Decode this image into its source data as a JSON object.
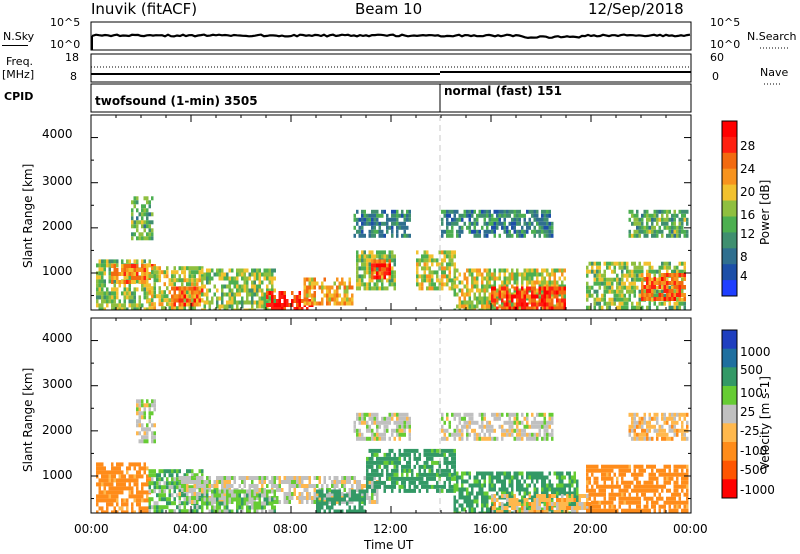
{
  "header": {
    "station": "Inuvik (fitACF)",
    "beam": "Beam 10",
    "date": "12/Sep/2018"
  },
  "top_panel": {
    "left_label": "N.Sky",
    "left_ticks": [
      "10^5",
      "10^0"
    ],
    "right_label": "N.Search",
    "right_ticks": [
      "10^5",
      "10^0"
    ]
  },
  "freq_panel": {
    "left_label_1": "Freq.",
    "left_label_2": "[MHz]",
    "left_ticks": [
      "18",
      "8"
    ],
    "right_label": "Nave",
    "right_ticks": [
      "60",
      "0"
    ]
  },
  "cpid_panel": {
    "label": "CPID",
    "mode_1": "twofsound (1-min) 3505",
    "mode_2": "normal (fast) 151"
  },
  "colors": {
    "power_scale": [
      "#1f3fff",
      "#1c4fa8",
      "#2f6f8f",
      "#3f8f6f",
      "#4caf50",
      "#8fbf3f",
      "#f2c12e",
      "#f7931e",
      "#f26a10",
      "#ff2010",
      "#ff0000"
    ],
    "velocity_scale": [
      "#ff0000",
      "#ff5500",
      "#ff8c1a",
      "#ffb84d",
      "#c0c0c0",
      "#66cc33",
      "#339966",
      "#1f6f9f",
      "#1f3fbf"
    ]
  },
  "chart_data": [
    {
      "type": "heatmap",
      "title": "",
      "xlabel": "",
      "ylabel": "Slant Range [km]",
      "xlim": [
        "00:00",
        "00:00"
      ],
      "ylim": [
        180,
        4500
      ],
      "yticks": [
        "4000",
        "3000",
        "2000",
        "1000"
      ],
      "colorbar": {
        "label": "Power [dB]",
        "ticks": [
          "28",
          "24",
          "20",
          "16",
          "12",
          "8",
          "4"
        ],
        "range": [
          0,
          30
        ]
      },
      "regions": [
        {
          "t0": 0.2,
          "t1": 2.4,
          "r0": 180,
          "r1": 1300,
          "value": 14
        },
        {
          "t0": 0.8,
          "t1": 2.6,
          "r0": 800,
          "r1": 1200,
          "value": 22
        },
        {
          "t0": 1.6,
          "t1": 2.5,
          "r0": 1800,
          "r1": 2700,
          "value": 12
        },
        {
          "t0": 2.3,
          "t1": 4.5,
          "r0": 180,
          "r1": 1150,
          "value": 16
        },
        {
          "t0": 3.2,
          "t1": 4.5,
          "r0": 300,
          "r1": 700,
          "value": 24
        },
        {
          "t0": 4.4,
          "t1": 7.4,
          "r0": 180,
          "r1": 1100,
          "value": 14
        },
        {
          "t0": 7.0,
          "t1": 9.0,
          "r0": 180,
          "r1": 600,
          "value": 28
        },
        {
          "t0": 8.5,
          "t1": 10.5,
          "r0": 300,
          "r1": 900,
          "value": 20
        },
        {
          "t0": 10.6,
          "t1": 12.2,
          "r0": 700,
          "r1": 1500,
          "value": 14
        },
        {
          "t0": 11.2,
          "t1": 11.9,
          "r0": 900,
          "r1": 1300,
          "value": 26
        },
        {
          "t0": 10.5,
          "t1": 12.8,
          "r0": 1800,
          "r1": 2400,
          "value": 8
        },
        {
          "t0": 13.0,
          "t1": 14.6,
          "r0": 700,
          "r1": 1500,
          "value": 16
        },
        {
          "t0": 14.5,
          "t1": 19.0,
          "r0": 180,
          "r1": 1100,
          "value": 16
        },
        {
          "t0": 16.0,
          "t1": 19.0,
          "r0": 180,
          "r1": 700,
          "value": 26
        },
        {
          "t0": 14.0,
          "t1": 18.5,
          "r0": 1800,
          "r1": 2400,
          "value": 8
        },
        {
          "t0": 19.8,
          "t1": 23.8,
          "r0": 180,
          "r1": 1250,
          "value": 14
        },
        {
          "t0": 22.0,
          "t1": 23.8,
          "r0": 400,
          "r1": 1000,
          "value": 24
        },
        {
          "t0": 21.5,
          "t1": 23.9,
          "r0": 1800,
          "r1": 2400,
          "value": 12
        }
      ]
    },
    {
      "type": "heatmap",
      "title": "",
      "xlabel": "Time UT",
      "ylabel": "Slant Range [km]",
      "xlim": [
        "00:00",
        "00:00"
      ],
      "ylim": [
        180,
        4500
      ],
      "yticks": [
        "4000",
        "3000",
        "2000",
        "1000"
      ],
      "xticks": [
        "00:00",
        "04:00",
        "08:00",
        "12:00",
        "16:00",
        "20:00",
        "00:00"
      ],
      "colorbar": {
        "label": "Velocity [m s-1]",
        "ticks": [
          "1000",
          "500",
          "100",
          "25",
          "-25",
          "-100",
          "-500",
          "-1000"
        ]
      },
      "regions": [
        {
          "t0": 0.2,
          "t1": 2.4,
          "r0": 180,
          "r1": 1300,
          "value": -200
        },
        {
          "t0": 1.8,
          "t1": 2.6,
          "r0": 1800,
          "r1": 2700,
          "value": 0
        },
        {
          "t0": 2.3,
          "t1": 4.5,
          "r0": 180,
          "r1": 1150,
          "value": 80
        },
        {
          "t0": 3.5,
          "t1": 11.5,
          "r0": 400,
          "r1": 1000,
          "value": 0
        },
        {
          "t0": 4.4,
          "t1": 7.4,
          "r0": 180,
          "r1": 700,
          "value": 60
        },
        {
          "t0": 9.0,
          "t1": 11.0,
          "r0": 180,
          "r1": 700,
          "value": 300
        },
        {
          "t0": 11.0,
          "t1": 14.6,
          "r0": 700,
          "r1": 1600,
          "value": 200
        },
        {
          "t0": 10.5,
          "t1": 12.8,
          "r0": 1800,
          "r1": 2400,
          "value": 0
        },
        {
          "t0": 14.5,
          "t1": 19.5,
          "r0": 180,
          "r1": 1100,
          "value": 150
        },
        {
          "t0": 16.0,
          "t1": 20.0,
          "r0": 180,
          "r1": 600,
          "value": -50
        },
        {
          "t0": 14.0,
          "t1": 18.5,
          "r0": 1800,
          "r1": 2400,
          "value": 0
        },
        {
          "t0": 19.8,
          "t1": 23.9,
          "r0": 180,
          "r1": 1250,
          "value": -250
        },
        {
          "t0": 21.5,
          "t1": 23.9,
          "r0": 1800,
          "r1": 2400,
          "value": -60
        }
      ]
    }
  ]
}
